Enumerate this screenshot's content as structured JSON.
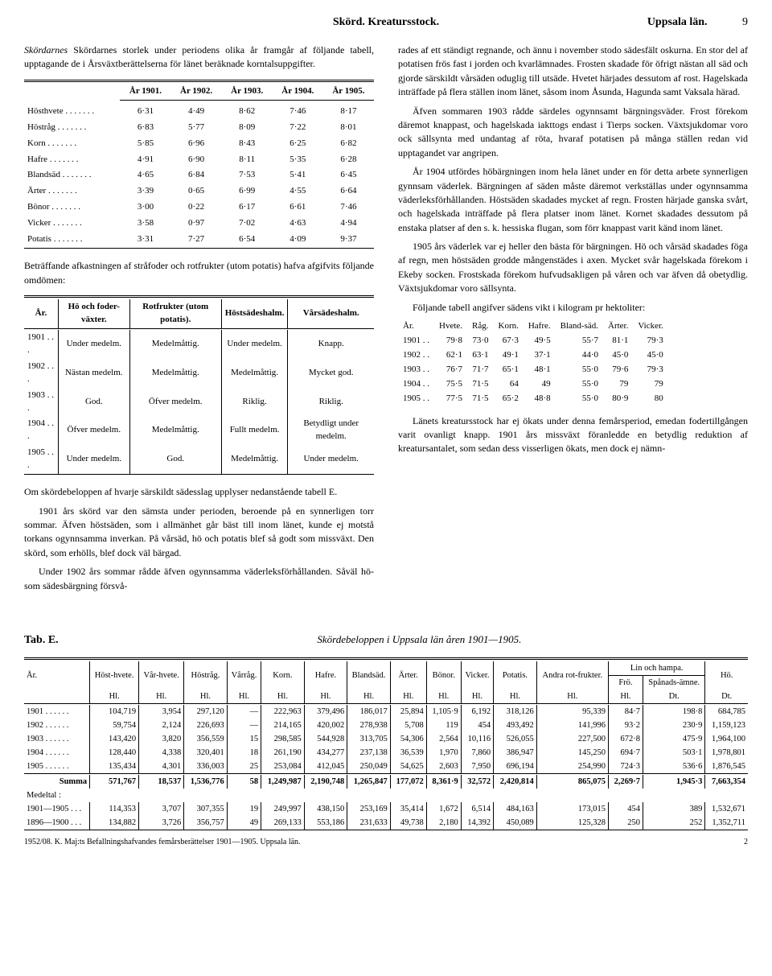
{
  "header": {
    "center": "Skörd.  Kreatursstock.",
    "right_label": "Uppsala län.",
    "page_no": "9"
  },
  "left": {
    "para1": "Skördarnes storlek under periodens olika år framgår af följande tabell, upptagande de i Årsväxtberättelserna för länet beräknade korntalsuppgifter.",
    "table1": {
      "years": [
        "År 1901.",
        "År 1902.",
        "År 1903.",
        "År 1904.",
        "År 1905."
      ],
      "rows": [
        {
          "label": "Hösthvete",
          "v": [
            "6·31",
            "4·49",
            "8·62",
            "7·46",
            "8·17"
          ]
        },
        {
          "label": "Höstråg",
          "v": [
            "6·83",
            "5·77",
            "8·09",
            "7·22",
            "8·01"
          ]
        },
        {
          "label": "Korn",
          "v": [
            "5·85",
            "6·96",
            "8·43",
            "6·25",
            "6·82"
          ]
        },
        {
          "label": "Hafre",
          "v": [
            "4·91",
            "6·90",
            "8·11",
            "5·35",
            "6·28"
          ]
        },
        {
          "label": "Blandsäd",
          "v": [
            "4·65",
            "6·84",
            "7·53",
            "5·41",
            "6·45"
          ]
        },
        {
          "label": "Ärter",
          "v": [
            "3·39",
            "0·65",
            "6·99",
            "4·55",
            "6·64"
          ]
        },
        {
          "label": "Bönor",
          "v": [
            "3·00",
            "0·22",
            "6·17",
            "6·61",
            "7·46"
          ]
        },
        {
          "label": "Vicker",
          "v": [
            "3·58",
            "0·97",
            "7·02",
            "4·63",
            "4·94"
          ]
        },
        {
          "label": "Potatis",
          "v": [
            "3·31",
            "7·27",
            "6·54",
            "4·09",
            "9·37"
          ]
        }
      ]
    },
    "para2": "Beträffande afkastningen af stråfoder och rotfrukter (utom potatis) hafva afgifvits följande omdömen:",
    "table2": {
      "headers": [
        "År.",
        "Hö och foder-växter.",
        "Rotfrukter (utom potatis).",
        "Höstsädeshalm.",
        "Vårsädeshalm."
      ],
      "rows": [
        {
          "y": "1901 . . .",
          "c": [
            "Under medelm.",
            "Medelmåttig.",
            "Under medelm.",
            "Knapp."
          ]
        },
        {
          "y": "1902 . . .",
          "c": [
            "Nästan medelm.",
            "Medelmåttig.",
            "Medelmåttig.",
            "Mycket god."
          ]
        },
        {
          "y": "1903 . . .",
          "c": [
            "God.",
            "Öfver medelm.",
            "Riklig.",
            "Riklig."
          ]
        },
        {
          "y": "1904 . . .",
          "c": [
            "Öfver medelm.",
            "Medelmåttig.",
            "Fullt medelm.",
            "Betydligt under medelm."
          ]
        },
        {
          "y": "1905 . . .",
          "c": [
            "Under medelm.",
            "God.",
            "Medelmåttig.",
            "Under medelm."
          ]
        }
      ]
    },
    "para3": "Om skördebeloppen af hvarje särskildt sädesslag upplyser nedanstående tabell E.",
    "para4": "1901 års skörd var den sämsta under perioden, beroende på en synnerligen torr sommar. Äfven höstsäden, som i allmänhet går bäst till inom länet, kunde ej motstå torkans ogynnsamma inverkan. På vårsäd, hö och potatis blef så godt som missväxt. Den skörd, som erhölls, blef dock väl bärgad.",
    "para5": "Under 1902 års sommar rådde äfven ogynnsamma väderleksförhållanden. Såväl hö- som sädesbärgning försvå-"
  },
  "right": {
    "para1": "rades af ett ständigt regnande, och ännu i november stodo sädesfält oskurna. En stor del af potatisen frös fast i jorden och kvarlämnades. Frosten skadade för öfrigt nästan all säd och gjorde särskildt vårsäden oduglig till utsäde. Hvetet härjades dessutom af rost. Hagelskada inträffade på flera ställen inom länet, såsom inom Åsunda, Hagunda samt Vaksala härad.",
    "para2": "Äfven sommaren 1903 rådde särdeles ogynnsamt bärgningsväder. Frost förekom däremot knappast, och hagelskada iakttogs endast i Tierps socken. Växtsjukdomar voro ock sällsynta med undantag af röta, hvaraf potatisen på många ställen redan vid upptagandet var angripen.",
    "para3": "År 1904 utfördes höbärgningen inom hela länet under en för detta arbete synnerligen gynnsam väderlek. Bärgningen af säden måste däremot verkställas under ogynnsamma väderleksförhållanden. Höstsäden skadades mycket af regn. Frosten härjade ganska svårt, och hagelskada inträffade på flera platser inom länet. Kornet skadades dessutom på enstaka platser af den s. k. hessiska flugan, som förr knappast varit känd inom länet.",
    "para4": "1905 års väderlek var ej heller den bästa för bärgningen. Hö och vårsäd skadades föga af regn, men höstsäden grodde mångenstädes i axen. Mycket svår hagelskada förekom i Ekeby socken. Frostskada förekom hufvudsakligen på våren och var äfven då obetydlig. Växtsjukdomar voro sällsynta.",
    "para5": "Följande tabell angifver sädens vikt i kilogram pr hektoliter:",
    "weights": {
      "headers": [
        "År.",
        "Hvete.",
        "Råg.",
        "Korn.",
        "Hafre.",
        "Bland-säd.",
        "Ärter.",
        "Vicker."
      ],
      "rows": [
        {
          "y": "1901 . .",
          "v": [
            "79·8",
            "73·0",
            "67·3",
            "49·5",
            "55·7",
            "81·1",
            "79·3"
          ]
        },
        {
          "y": "1902 . .",
          "v": [
            "62·1",
            "63·1",
            "49·1",
            "37·1",
            "44·0",
            "45·0",
            "45·0"
          ]
        },
        {
          "y": "1903 . .",
          "v": [
            "76·7",
            "71·7",
            "65·1",
            "48·1",
            "55·0",
            "79·6",
            "79·3"
          ]
        },
        {
          "y": "1904 . .",
          "v": [
            "75·5",
            "71·5",
            "64",
            "49",
            "55·0",
            "79",
            "79"
          ]
        },
        {
          "y": "1905 . .",
          "v": [
            "77·5",
            "71·5",
            "65·2",
            "48·8",
            "55·0",
            "80·9",
            "80"
          ]
        }
      ]
    },
    "para6": "Länets kreatursstock har ej ökats under denna femårsperiod, emedan fodertillgången varit ovanligt knapp. 1901 års missväxt föranledde en betydlig reduktion af kreatursantalet, som sedan dess visserligen ökats, men dock ej nämn-"
  },
  "tabE": {
    "label": "Tab. E.",
    "title": "Skördebeloppen i Uppsala län åren 1901—1905.",
    "group_headers": {
      "andra": "Andra rot-frukter.",
      "lin": "Lin och hampa.",
      "fro": "Frö.",
      "span": "Spånads-ämne."
    },
    "cols": [
      "År.",
      "Höst-hvete.",
      "Vår-hvete.",
      "Höstråg.",
      "Vårråg.",
      "Korn.",
      "Hafre.",
      "Blandsäd.",
      "Ärter.",
      "Bönor.",
      "Vicker.",
      "Potatis.",
      "Andra rot-frukter.",
      "Frö.",
      "Spånads-ämne.",
      "Hö."
    ],
    "units": [
      "",
      "Hl.",
      "Hl.",
      "Hl.",
      "Hl.",
      "Hl.",
      "Hl.",
      "Hl.",
      "Hl.",
      "Hl.",
      "Hl.",
      "Hl.",
      "Hl.",
      "Hl.",
      "Dt.",
      "Dt."
    ],
    "rows": [
      {
        "y": "1901",
        "v": [
          "104,719",
          "3,954",
          "297,120",
          "—",
          "222,963",
          "379,496",
          "186,017",
          "25,894",
          "1,105·9",
          "6,192",
          "318,126",
          "95,339",
          "84·7",
          "198·8",
          "684,785"
        ]
      },
      {
        "y": "1902",
        "v": [
          "59,754",
          "2,124",
          "226,693",
          "—",
          "214,165",
          "420,002",
          "278,938",
          "5,708",
          "119",
          "454",
          "493,492",
          "141,996",
          "93·2",
          "230·9",
          "1,159,123"
        ]
      },
      {
        "y": "1903",
        "v": [
          "143,420",
          "3,820",
          "356,559",
          "15",
          "298,585",
          "544,928",
          "313,705",
          "54,306",
          "2,564",
          "10,116",
          "526,055",
          "227,500",
          "672·8",
          "475·9",
          "1,964,100"
        ]
      },
      {
        "y": "1904",
        "v": [
          "128,440",
          "4,338",
          "320,401",
          "18",
          "261,190",
          "434,277",
          "237,138",
          "36,539",
          "1,970",
          "7,860",
          "386,947",
          "145,250",
          "694·7",
          "503·1",
          "1,978,801"
        ]
      },
      {
        "y": "1905",
        "v": [
          "135,434",
          "4,301",
          "336,003",
          "25",
          "253,084",
          "412,045",
          "250,049",
          "54,625",
          "2,603",
          "7,950",
          "696,194",
          "254,990",
          "724·3",
          "536·6",
          "1,876,545"
        ]
      }
    ],
    "summa": {
      "label": "Summa",
      "v": [
        "571,767",
        "18,537",
        "1,536,776",
        "58",
        "1,249,987",
        "2,190,748",
        "1,265,847",
        "177,072",
        "8,361·9",
        "32,572",
        "2,420,814",
        "865,075",
        "2,269·7",
        "1,945·3",
        "7,663,354"
      ]
    },
    "medeltal_label": "Medeltal :",
    "medel_rows": [
      {
        "y": "1901—1905",
        "v": [
          "114,353",
          "3,707",
          "307,355",
          "19",
          "249,997",
          "438,150",
          "253,169",
          "35,414",
          "1,672",
          "6,514",
          "484,163",
          "173,015",
          "454",
          "389",
          "1,532,671"
        ]
      },
      {
        "y": "1896—1900",
        "v": [
          "134,882",
          "3,726",
          "356,757",
          "49",
          "269,133",
          "553,186",
          "231,633",
          "49,738",
          "2,180",
          "14,392",
          "450,089",
          "125,328",
          "250",
          "252",
          "1,352,711"
        ]
      }
    ],
    "footnote": "1952/08.  K. Maj:ts Befallningshafvandes femårsberättelser 1901—1905.  Uppsala län.",
    "footer_page": "2"
  }
}
